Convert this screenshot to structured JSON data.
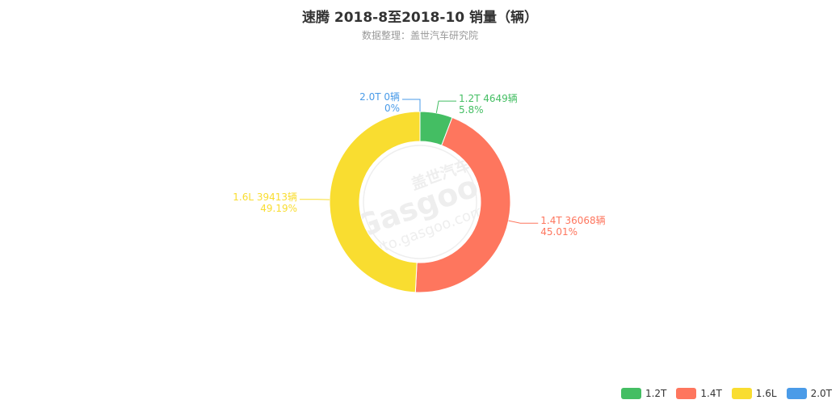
{
  "chart_data": {
    "type": "pie",
    "variant": "donut",
    "title": "速腾 2018-8至2018-10 销量（辆）",
    "subtitle": "数据整理：盖世汽车研究院",
    "label_unit": "辆",
    "slices": [
      {
        "name": "1.2T",
        "value": 4649,
        "percent": "5.8%",
        "color": "#44be63"
      },
      {
        "name": "1.4T",
        "value": 36068,
        "percent": "45.01%",
        "color": "#fe765e"
      },
      {
        "name": "1.6L",
        "value": 39413,
        "percent": "49.19%",
        "color": "#f9dd30"
      },
      {
        "name": "2.0T",
        "value": 0,
        "percent": "0%",
        "color": "#4a9be8"
      }
    ],
    "legend": {
      "position": "bottom-right",
      "items": [
        "1.2T",
        "1.4T",
        "1.6L",
        "2.0T"
      ]
    },
    "watermark": {
      "brand_cn": "盖世汽车",
      "brand_en": "Gasgoo",
      "url": "auto.gasgoo.com"
    }
  }
}
